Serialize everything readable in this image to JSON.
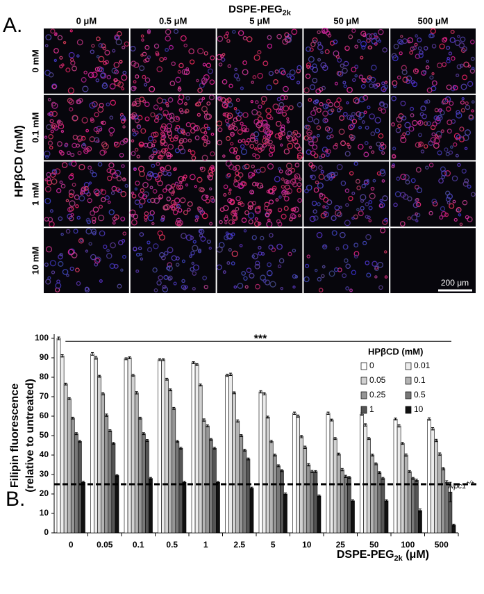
{
  "panel_a": {
    "label": "A.",
    "header": "DSPE-PEG",
    "header_sub": "2k",
    "columns": [
      "0 μM",
      "0.5 μM",
      "5 μM",
      "50 μM",
      "500 μM"
    ],
    "row_axis": "HPβCD (mM)",
    "rows": [
      "0 mM",
      "0.1 mM",
      "1 mM",
      "10 mM"
    ],
    "scale_bar": "200 μm"
  },
  "chart_data": {
    "type": "bar",
    "panel_label": "B.",
    "y_label": [
      "Filipin fluorescence",
      "(relative to untreated)"
    ],
    "x_label": "DSPE-PEG",
    "x_label_sub": "2k",
    "x_label_unit": " (μM)",
    "categories": [
      "0",
      "0.05",
      "0.1",
      "0.5",
      "1",
      "2.5",
      "5",
      "10",
      "25",
      "50",
      "100",
      "500"
    ],
    "legend_title": "HPβCD (mM)",
    "series": [
      {
        "name": "0",
        "color": "#ffffff",
        "values": [
          100,
          92,
          89.5,
          89,
          87.5,
          81,
          72.5,
          61.5,
          61.5,
          61,
          58.5,
          58.5
        ],
        "errors": [
          0.7,
          0.7,
          0.5,
          0.5,
          0.5,
          0.6,
          0.6,
          0.6,
          0.6,
          0.6,
          0.5,
          0.6
        ]
      },
      {
        "name": "0.01",
        "color": "#ececec",
        "values": [
          91,
          90,
          90,
          89,
          86.5,
          81.5,
          71.5,
          60,
          58,
          55.5,
          55,
          53.5
        ],
        "errors": [
          0.6,
          0.7,
          0.5,
          0.5,
          0.5,
          0.6,
          0.6,
          0.6,
          0.5,
          0.6,
          0.6,
          0.6
        ]
      },
      {
        "name": "0.05",
        "color": "#d2d2d2",
        "values": [
          76.5,
          80.5,
          81,
          79,
          76,
          72,
          59.5,
          49.5,
          48.5,
          48.5,
          46,
          47.5
        ],
        "errors": [
          0.5,
          0.5,
          0.5,
          0.5,
          0.5,
          0.5,
          0.5,
          0.6,
          0.5,
          0.5,
          0.5,
          0.6
        ]
      },
      {
        "name": "0.1",
        "color": "#b4b4b4",
        "values": [
          69,
          71.5,
          72,
          73.5,
          58,
          57.5,
          47,
          44,
          40.5,
          40,
          40,
          40.5
        ],
        "errors": [
          0.5,
          0.6,
          0.6,
          0.5,
          0.6,
          0.6,
          0.6,
          0.6,
          0.5,
          0.5,
          0.6,
          0.6
        ]
      },
      {
        "name": "0.25",
        "color": "#969696",
        "values": [
          59,
          60.5,
          59,
          64,
          55,
          50,
          40,
          35,
          32.5,
          35.5,
          31.5,
          33
        ],
        "errors": [
          0.5,
          0.6,
          0.5,
          0.5,
          0.5,
          0.5,
          0.5,
          0.6,
          0.6,
          0.5,
          0.5,
          0.6
        ]
      },
      {
        "name": "0.5",
        "color": "#787878",
        "values": [
          51,
          52.5,
          51,
          47,
          48,
          42.5,
          34.5,
          31.5,
          29,
          31,
          28,
          26
        ],
        "errors": [
          0.5,
          0.5,
          0.5,
          0.5,
          0.5,
          0.5,
          0.5,
          0.6,
          0.6,
          0.5,
          0.5,
          0.8
        ]
      },
      {
        "name": "1",
        "color": "#555555",
        "values": [
          47,
          46,
          47.5,
          43.5,
          43.5,
          38,
          32,
          31.5,
          28.5,
          28,
          27,
          21
        ],
        "errors": [
          0.5,
          0.5,
          0.5,
          0.5,
          0.5,
          0.5,
          0.5,
          0.5,
          0.5,
          0.5,
          0.6,
          5
        ]
      },
      {
        "name": "10",
        "color": "#111111",
        "values": [
          26,
          29.5,
          28,
          26,
          26,
          23,
          20,
          19,
          16.5,
          16.5,
          11.5,
          4
        ],
        "errors": [
          0.6,
          0.5,
          0.5,
          0.5,
          0.5,
          0.5,
          0.5,
          0.5,
          0.5,
          0.5,
          0.8,
          0.5
        ]
      }
    ],
    "ylim": [
      0,
      100
    ],
    "yticks": [
      0,
      10,
      20,
      30,
      40,
      50,
      60,
      70,
      80,
      90,
      100
    ],
    "significance_line": 98.5,
    "significance_label": "***",
    "reference_line": 25,
    "reference_label": "Npc1",
    "reference_label_sup": "+/+"
  }
}
